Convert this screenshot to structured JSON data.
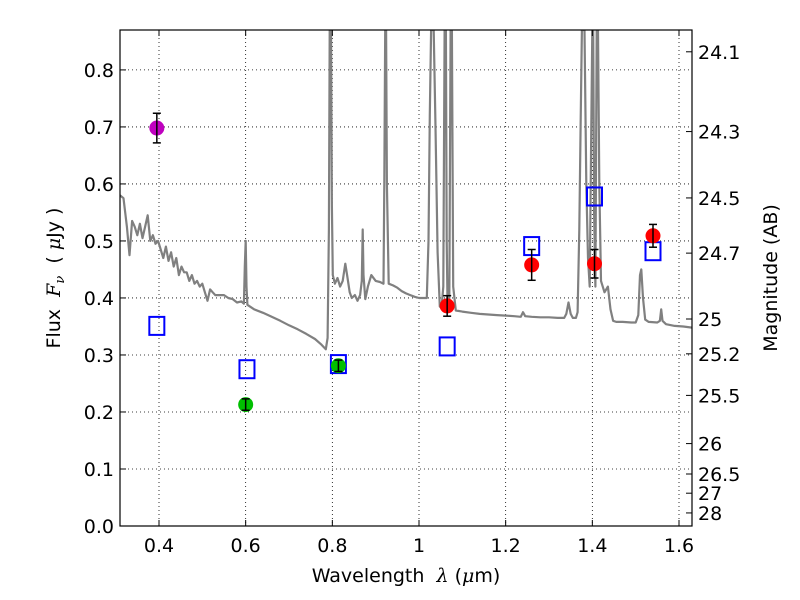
{
  "chart_data": {
    "type": "scatter",
    "title": "",
    "xlabel_prefix": "Wavelength  ",
    "xlabel_symbol": "λ",
    "xlabel_unit_open": " (",
    "xlabel_unit_mu": "μ",
    "xlabel_unit_close": "m)",
    "ylabel_prefix": "Flux  ",
    "ylabel_symbol": "F",
    "ylabel_sub": "ν",
    "ylabel_unit_open": "  ( ",
    "ylabel_unit_mu": "μ",
    "ylabel_unit_close": "Jy )",
    "y2label": "Magnitude (AB)",
    "xlim": [
      0.31,
      1.63
    ],
    "ylim": [
      0.0,
      0.87
    ],
    "grid": true,
    "xticks": [
      {
        "v": 0.4,
        "label": "0.4"
      },
      {
        "v": 0.6,
        "label": "0.6"
      },
      {
        "v": 0.8,
        "label": "0.8"
      },
      {
        "v": 1.0,
        "label": "1"
      },
      {
        "v": 1.2,
        "label": "1.2"
      },
      {
        "v": 1.4,
        "label": "1.4"
      },
      {
        "v": 1.6,
        "label": "1.6"
      }
    ],
    "yticks": [
      {
        "v": 0.0,
        "label": "0.0"
      },
      {
        "v": 0.1,
        "label": "0.1"
      },
      {
        "v": 0.2,
        "label": "0.2"
      },
      {
        "v": 0.3,
        "label": "0.3"
      },
      {
        "v": 0.4,
        "label": "0.4"
      },
      {
        "v": 0.5,
        "label": "0.5"
      },
      {
        "v": 0.6,
        "label": "0.6"
      },
      {
        "v": 0.7,
        "label": "0.7"
      },
      {
        "v": 0.8,
        "label": "0.8"
      }
    ],
    "y2ticks": [
      {
        "label": "24.1",
        "mag": 24.1
      },
      {
        "label": "24.3",
        "mag": 24.3
      },
      {
        "label": "24.5",
        "mag": 24.5
      },
      {
        "label": "24.7",
        "mag": 24.7
      },
      {
        "label": "25",
        "mag": 25.0
      },
      {
        "label": "25.2",
        "mag": 25.2
      },
      {
        "label": "25.5",
        "mag": 25.5
      },
      {
        "label": "26",
        "mag": 26.0
      },
      {
        "label": "26.5",
        "mag": 26.5
      },
      {
        "label": "27",
        "mag": 27.0
      },
      {
        "label": "28",
        "mag": 28.0
      }
    ],
    "observed_points": [
      {
        "x": 0.395,
        "y": 0.698,
        "err": 0.026,
        "color": "#bf00bf"
      },
      {
        "x": 0.6,
        "y": 0.213,
        "err": 0.01,
        "color": "#00bf00"
      },
      {
        "x": 0.814,
        "y": 0.281,
        "err": 0.01,
        "color": "#00bf00"
      },
      {
        "x": 1.065,
        "y": 0.386,
        "err": 0.018,
        "color": "#ff0000"
      },
      {
        "x": 1.26,
        "y": 0.458,
        "err": 0.027,
        "color": "#ff0000"
      },
      {
        "x": 1.405,
        "y": 0.46,
        "err": 0.025,
        "color": "#ff0000"
      },
      {
        "x": 1.54,
        "y": 0.509,
        "err": 0.02,
        "color": "#ff0000"
      }
    ],
    "model_points": [
      {
        "x": 0.395,
        "y": 0.351
      },
      {
        "x": 0.603,
        "y": 0.275
      },
      {
        "x": 0.814,
        "y": 0.284
      },
      {
        "x": 1.065,
        "y": 0.315
      },
      {
        "x": 1.26,
        "y": 0.491
      },
      {
        "x": 1.405,
        "y": 0.578
      },
      {
        "x": 1.54,
        "y": 0.482
      }
    ],
    "model_color": "#0000ff",
    "spectrum_color": "#808080",
    "spectrum": [
      [
        0.31,
        0.58
      ],
      [
        0.318,
        0.575
      ],
      [
        0.326,
        0.525
      ],
      [
        0.332,
        0.475
      ],
      [
        0.338,
        0.535
      ],
      [
        0.344,
        0.525
      ],
      [
        0.35,
        0.51
      ],
      [
        0.356,
        0.53
      ],
      [
        0.362,
        0.505
      ],
      [
        0.368,
        0.525
      ],
      [
        0.374,
        0.545
      ],
      [
        0.38,
        0.5
      ],
      [
        0.386,
        0.51
      ],
      [
        0.392,
        0.495
      ],
      [
        0.398,
        0.5
      ],
      [
        0.404,
        0.485
      ],
      [
        0.41,
        0.47
      ],
      [
        0.416,
        0.49
      ],
      [
        0.422,
        0.465
      ],
      [
        0.428,
        0.48
      ],
      [
        0.434,
        0.455
      ],
      [
        0.44,
        0.47
      ],
      [
        0.446,
        0.44
      ],
      [
        0.452,
        0.455
      ],
      [
        0.458,
        0.445
      ],
      [
        0.464,
        0.445
      ],
      [
        0.47,
        0.43
      ],
      [
        0.476,
        0.44
      ],
      [
        0.482,
        0.425
      ],
      [
        0.488,
        0.43
      ],
      [
        0.494,
        0.42
      ],
      [
        0.5,
        0.425
      ],
      [
        0.506,
        0.41
      ],
      [
        0.512,
        0.395
      ],
      [
        0.518,
        0.415
      ],
      [
        0.524,
        0.41
      ],
      [
        0.53,
        0.405
      ],
      [
        0.54,
        0.405
      ],
      [
        0.55,
        0.405
      ],
      [
        0.56,
        0.4
      ],
      [
        0.57,
        0.398
      ],
      [
        0.58,
        0.392
      ],
      [
        0.59,
        0.394
      ],
      [
        0.596,
        0.39
      ],
      [
        0.598,
        0.455
      ],
      [
        0.6,
        0.5
      ],
      [
        0.602,
        0.42
      ],
      [
        0.604,
        0.388
      ],
      [
        0.62,
        0.38
      ],
      [
        0.64,
        0.374
      ],
      [
        0.66,
        0.367
      ],
      [
        0.68,
        0.36
      ],
      [
        0.7,
        0.352
      ],
      [
        0.72,
        0.345
      ],
      [
        0.74,
        0.337
      ],
      [
        0.76,
        0.328
      ],
      [
        0.775,
        0.318
      ],
      [
        0.785,
        0.31
      ],
      [
        0.789,
        0.33
      ],
      [
        0.792,
        0.52
      ],
      [
        0.794,
        0.87
      ],
      [
        0.797,
        0.87
      ],
      [
        0.799,
        0.56
      ],
      [
        0.801,
        0.44
      ],
      [
        0.806,
        0.425
      ],
      [
        0.812,
        0.435
      ],
      [
        0.818,
        0.42
      ],
      [
        0.824,
        0.43
      ],
      [
        0.83,
        0.46
      ],
      [
        0.834,
        0.44
      ],
      [
        0.84,
        0.41
      ],
      [
        0.845,
        0.4
      ],
      [
        0.852,
        0.405
      ],
      [
        0.858,
        0.395
      ],
      [
        0.864,
        0.405
      ],
      [
        0.868,
        0.43
      ],
      [
        0.87,
        0.52
      ],
      [
        0.872,
        0.44
      ],
      [
        0.876,
        0.398
      ],
      [
        0.882,
        0.42
      ],
      [
        0.89,
        0.44
      ],
      [
        0.9,
        0.43
      ],
      [
        0.91,
        0.428
      ],
      [
        0.918,
        0.425
      ],
      [
        0.92,
        0.6
      ],
      [
        0.922,
        0.87
      ],
      [
        0.924,
        0.87
      ],
      [
        0.926,
        0.6
      ],
      [
        0.93,
        0.425
      ],
      [
        0.94,
        0.422
      ],
      [
        0.95,
        0.418
      ],
      [
        0.96,
        0.412
      ],
      [
        0.97,
        0.408
      ],
      [
        0.98,
        0.405
      ],
      [
        0.99,
        0.402
      ],
      [
        1.0,
        0.4
      ],
      [
        1.01,
        0.4
      ],
      [
        1.018,
        0.4
      ],
      [
        1.022,
        0.5
      ],
      [
        1.025,
        0.72
      ],
      [
        1.028,
        0.87
      ],
      [
        1.034,
        0.87
      ],
      [
        1.038,
        0.7
      ],
      [
        1.043,
        0.48
      ],
      [
        1.048,
        0.385
      ],
      [
        1.052,
        0.382
      ],
      [
        1.056,
        0.42
      ],
      [
        1.059,
        0.87
      ],
      [
        1.062,
        0.87
      ],
      [
        1.064,
        0.5
      ],
      [
        1.066,
        0.38
      ],
      [
        1.07,
        0.39
      ],
      [
        1.073,
        0.87
      ],
      [
        1.076,
        0.87
      ],
      [
        1.079,
        0.42
      ],
      [
        1.085,
        0.378
      ],
      [
        1.1,
        0.376
      ],
      [
        1.12,
        0.374
      ],
      [
        1.14,
        0.372
      ],
      [
        1.16,
        0.371
      ],
      [
        1.18,
        0.37
      ],
      [
        1.2,
        0.369
      ],
      [
        1.22,
        0.368
      ],
      [
        1.235,
        0.367
      ],
      [
        1.24,
        0.375
      ],
      [
        1.245,
        0.368
      ],
      [
        1.26,
        0.367
      ],
      [
        1.28,
        0.366
      ],
      [
        1.3,
        0.366
      ],
      [
        1.32,
        0.365
      ],
      [
        1.335,
        0.365
      ],
      [
        1.34,
        0.372
      ],
      [
        1.345,
        0.392
      ],
      [
        1.35,
        0.372
      ],
      [
        1.355,
        0.365
      ],
      [
        1.362,
        0.365
      ],
      [
        1.366,
        0.375
      ],
      [
        1.37,
        0.52
      ],
      [
        1.373,
        0.7
      ],
      [
        1.376,
        0.87
      ],
      [
        1.382,
        0.87
      ],
      [
        1.386,
        0.6
      ],
      [
        1.39,
        0.47
      ],
      [
        1.394,
        0.42
      ],
      [
        1.397,
        0.65
      ],
      [
        1.4,
        0.87
      ],
      [
        1.402,
        0.87
      ],
      [
        1.404,
        0.55
      ],
      [
        1.407,
        0.42
      ],
      [
        1.41,
        0.87
      ],
      [
        1.413,
        0.87
      ],
      [
        1.416,
        0.6
      ],
      [
        1.42,
        0.43
      ],
      [
        1.428,
        0.41
      ],
      [
        1.436,
        0.42
      ],
      [
        1.442,
        0.38
      ],
      [
        1.448,
        0.36
      ],
      [
        1.455,
        0.358
      ],
      [
        1.47,
        0.358
      ],
      [
        1.49,
        0.357
      ],
      [
        1.5,
        0.357
      ],
      [
        1.506,
        0.37
      ],
      [
        1.51,
        0.44
      ],
      [
        1.513,
        0.45
      ],
      [
        1.517,
        0.4
      ],
      [
        1.522,
        0.362
      ],
      [
        1.53,
        0.358
      ],
      [
        1.55,
        0.357
      ],
      [
        1.556,
        0.36
      ],
      [
        1.559,
        0.38
      ],
      [
        1.562,
        0.36
      ],
      [
        1.57,
        0.354
      ],
      [
        1.59,
        0.351
      ],
      [
        1.61,
        0.35
      ],
      [
        1.63,
        0.348
      ]
    ]
  }
}
